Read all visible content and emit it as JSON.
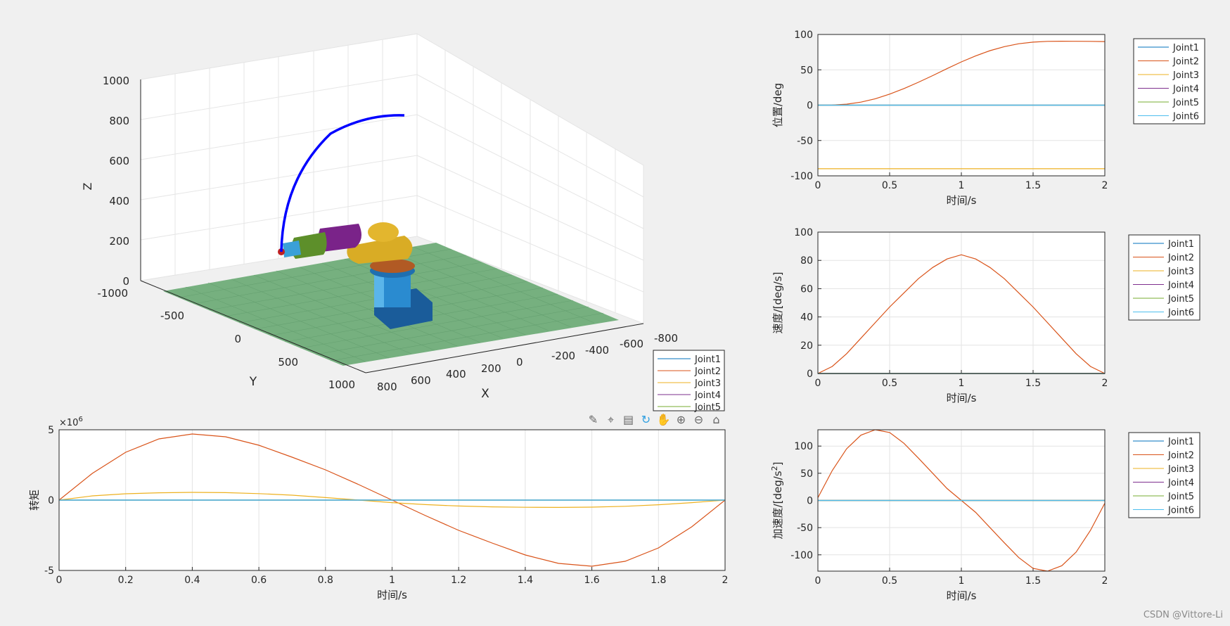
{
  "figure_3d": {
    "xlabel": "X",
    "ylabel": "Y",
    "zlabel": "Z",
    "x_ticks": [
      "800",
      "600",
      "400",
      "200",
      "0",
      "-200",
      "-400",
      "-600",
      "-800"
    ],
    "y_ticks": [
      "-1000",
      "-500",
      "0",
      "500",
      "1000"
    ],
    "z_ticks": [
      "0",
      "200",
      "400",
      "600",
      "800",
      "1000"
    ],
    "legend": [
      "Joint1",
      "Joint2",
      "Joint3",
      "Joint4",
      "Joint5"
    ],
    "trajectory_color": "#0000ff",
    "floor_color": "#6fae7c"
  },
  "toolbar": {
    "icons": [
      "brush-icon",
      "data-tips-icon",
      "legend-icon",
      "rotate-icon",
      "pan-icon",
      "zoom-in-icon",
      "zoom-out-icon",
      "home-icon"
    ],
    "glyphs": [
      "✎",
      "⌖",
      "▤",
      "↻",
      "✋",
      "⊕",
      "⊖",
      "⌂"
    ]
  },
  "series_colors": [
    "#0072bd",
    "#d95319",
    "#edb120",
    "#7e2f8e",
    "#77ac30",
    "#4dbeee"
  ],
  "watermark": "CSDN @Vittore-Li",
  "chart_data": [
    {
      "id": "position",
      "type": "line",
      "xlabel": "时间/s",
      "ylabel": "位置/deg",
      "xlim": [
        0,
        2
      ],
      "ylim": [
        -100,
        100
      ],
      "xticks": [
        0,
        0.5,
        1,
        1.5,
        2
      ],
      "yticks": [
        -100,
        -50,
        0,
        50,
        100
      ],
      "x_tick_labels": [
        "0",
        "0.5",
        "1",
        "1.5",
        "2"
      ],
      "y_tick_labels": [
        "-100",
        "-50",
        "0",
        "50",
        "100"
      ],
      "grid": true,
      "legend": "outside-right",
      "x": [
        0,
        0.1,
        0.2,
        0.3,
        0.4,
        0.5,
        0.6,
        0.7,
        0.8,
        0.9,
        1.0,
        1.1,
        1.2,
        1.3,
        1.4,
        1.5,
        1.6,
        1.7,
        1.8,
        1.9,
        2.0
      ],
      "series": [
        {
          "name": "Joint1",
          "values": [
            0,
            0,
            0,
            0,
            0,
            0,
            0,
            0,
            0,
            0,
            0,
            0,
            0,
            0,
            0,
            0,
            0,
            0,
            0,
            0,
            0
          ]
        },
        {
          "name": "Joint2",
          "values": [
            0,
            0.2,
            1.4,
            4.3,
            9.1,
            15.6,
            23.5,
            32.3,
            41.8,
            51.6,
            61.2,
            69.8,
            77.1,
            82.8,
            86.9,
            89.2,
            90.2,
            90.4,
            90.3,
            90.2,
            90
          ]
        },
        {
          "name": "Joint3",
          "values": [
            -90,
            -90,
            -90,
            -90,
            -90,
            -90,
            -90,
            -90,
            -90,
            -90,
            -90,
            -90,
            -90,
            -90,
            -90,
            -90,
            -90,
            -90,
            -90,
            -90,
            -90
          ]
        },
        {
          "name": "Joint4",
          "values": [
            0,
            0,
            0,
            0,
            0,
            0,
            0,
            0,
            0,
            0,
            0,
            0,
            0,
            0,
            0,
            0,
            0,
            0,
            0,
            0,
            0
          ]
        },
        {
          "name": "Joint5",
          "values": [
            0,
            0,
            0,
            0,
            0,
            0,
            0,
            0,
            0,
            0,
            0,
            0,
            0,
            0,
            0,
            0,
            0,
            0,
            0,
            0,
            0
          ]
        },
        {
          "name": "Joint6",
          "values": [
            0,
            0,
            0,
            0,
            0,
            0,
            0,
            0,
            0,
            0,
            0,
            0,
            0,
            0,
            0,
            0,
            0,
            0,
            0,
            0,
            0
          ]
        }
      ]
    },
    {
      "id": "velocity",
      "type": "line",
      "xlabel": "时间/s",
      "ylabel": "速度/[deg/s]",
      "xlim": [
        0,
        2
      ],
      "ylim": [
        0,
        100
      ],
      "xticks": [
        0,
        0.5,
        1,
        1.5,
        2
      ],
      "yticks": [
        0,
        20,
        40,
        60,
        80,
        100
      ],
      "x_tick_labels": [
        "0",
        "0.5",
        "1",
        "1.5",
        "2"
      ],
      "y_tick_labels": [
        "0",
        "20",
        "40",
        "60",
        "80",
        "100"
      ],
      "grid": true,
      "legend": "outside-right",
      "x": [
        0,
        0.1,
        0.2,
        0.3,
        0.4,
        0.5,
        0.6,
        0.7,
        0.8,
        0.9,
        1.0,
        1.1,
        1.2,
        1.3,
        1.4,
        1.5,
        1.6,
        1.7,
        1.8,
        1.9,
        2.0
      ],
      "series": [
        {
          "name": "Joint1",
          "values": [
            0,
            0,
            0,
            0,
            0,
            0,
            0,
            0,
            0,
            0,
            0,
            0,
            0,
            0,
            0,
            0,
            0,
            0,
            0,
            0,
            0
          ]
        },
        {
          "name": "Joint2",
          "values": [
            0,
            5,
            14,
            25,
            36,
            47,
            57,
            67,
            75,
            81,
            84,
            81,
            75,
            67,
            57,
            47,
            36,
            25,
            14,
            5,
            0
          ]
        },
        {
          "name": "Joint3",
          "values": [
            0,
            0,
            0,
            0,
            0,
            0,
            0,
            0,
            0,
            0,
            0,
            0,
            0,
            0,
            0,
            0,
            0,
            0,
            0,
            0,
            0
          ]
        },
        {
          "name": "Joint4",
          "values": [
            0,
            0,
            0,
            0,
            0,
            0,
            0,
            0,
            0,
            0,
            0,
            0,
            0,
            0,
            0,
            0,
            0,
            0,
            0,
            0,
            0
          ]
        },
        {
          "name": "Joint5",
          "values": [
            0,
            0,
            0,
            0,
            0,
            0,
            0,
            0,
            0,
            0,
            0,
            0,
            0,
            0,
            0,
            0,
            0,
            0,
            0,
            0,
            0
          ]
        },
        {
          "name": "Joint6",
          "values": [
            0,
            0,
            0,
            0,
            0,
            0,
            0,
            0,
            0,
            0,
            0,
            0,
            0,
            0,
            0,
            0,
            0,
            0,
            0,
            0,
            0
          ]
        }
      ]
    },
    {
      "id": "acceleration",
      "type": "line",
      "xlabel": "时间/s",
      "ylabel": "加速度/[deg/s",
      "ylabel_sup": "2",
      "ylabel_end": "]",
      "xlim": [
        0,
        2
      ],
      "ylim": [
        -130,
        130
      ],
      "xticks": [
        0,
        0.5,
        1,
        1.5,
        2
      ],
      "yticks": [
        -100,
        -50,
        0,
        50,
        100
      ],
      "x_tick_labels": [
        "0",
        "0.5",
        "1",
        "1.5",
        "2"
      ],
      "y_tick_labels": [
        "-100",
        "-50",
        "0",
        "50",
        "100"
      ],
      "grid": true,
      "legend": "outside-right",
      "x": [
        0,
        0.1,
        0.2,
        0.3,
        0.4,
        0.5,
        0.6,
        0.7,
        0.8,
        0.9,
        1.0,
        1.1,
        1.2,
        1.3,
        1.4,
        1.5,
        1.6,
        1.7,
        1.8,
        1.9,
        2.0
      ],
      "series": [
        {
          "name": "Joint1",
          "values": [
            0,
            0,
            0,
            0,
            0,
            0,
            0,
            0,
            0,
            0,
            0,
            0,
            0,
            0,
            0,
            0,
            0,
            0,
            0,
            0,
            0
          ]
        },
        {
          "name": "Joint2",
          "values": [
            5,
            55,
            95,
            120,
            130,
            125,
            105,
            78,
            50,
            22,
            0,
            -22,
            -50,
            -78,
            -105,
            -125,
            -130,
            -120,
            -95,
            -55,
            -5
          ]
        },
        {
          "name": "Joint3",
          "values": [
            0,
            0,
            0,
            0,
            0,
            0,
            0,
            0,
            0,
            0,
            0,
            0,
            0,
            0,
            0,
            0,
            0,
            0,
            0,
            0,
            0
          ]
        },
        {
          "name": "Joint4",
          "values": [
            0,
            0,
            0,
            0,
            0,
            0,
            0,
            0,
            0,
            0,
            0,
            0,
            0,
            0,
            0,
            0,
            0,
            0,
            0,
            0,
            0
          ]
        },
        {
          "name": "Joint5",
          "values": [
            0,
            0,
            0,
            0,
            0,
            0,
            0,
            0,
            0,
            0,
            0,
            0,
            0,
            0,
            0,
            0,
            0,
            0,
            0,
            0,
            0
          ]
        },
        {
          "name": "Joint6",
          "values": [
            0,
            0,
            0,
            0,
            0,
            0,
            0,
            0,
            0,
            0,
            0,
            0,
            0,
            0,
            0,
            0,
            0,
            0,
            0,
            0,
            0
          ]
        }
      ]
    },
    {
      "id": "torque",
      "type": "line",
      "xlabel": "时间/s",
      "ylabel": "转矩",
      "exponent": "6",
      "exponent_base": "×10",
      "xlim": [
        0,
        2
      ],
      "ylim": [
        -5,
        5
      ],
      "xticks": [
        0,
        0.2,
        0.4,
        0.6,
        0.8,
        1,
        1.2,
        1.4,
        1.6,
        1.8,
        2
      ],
      "yticks": [
        -5,
        0,
        5
      ],
      "x_tick_labels": [
        "0",
        "0.2",
        "0.4",
        "0.6",
        "0.8",
        "1",
        "1.2",
        "1.4",
        "1.6",
        "1.8",
        "2"
      ],
      "y_tick_labels": [
        "-5",
        "0",
        "5"
      ],
      "grid": true,
      "x": [
        0,
        0.1,
        0.2,
        0.3,
        0.4,
        0.5,
        0.6,
        0.7,
        0.8,
        0.9,
        1.0,
        1.1,
        1.2,
        1.3,
        1.4,
        1.5,
        1.6,
        1.7,
        1.8,
        1.9,
        2.0
      ],
      "series": [
        {
          "name": "Joint1",
          "values": [
            0,
            0,
            0,
            0,
            0,
            0,
            0,
            0,
            0,
            0,
            0,
            0,
            0,
            0,
            0,
            0,
            0,
            0,
            0,
            0,
            0
          ]
        },
        {
          "name": "Joint2",
          "values": [
            0,
            1.9,
            3.4,
            4.35,
            4.7,
            4.5,
            3.9,
            3.05,
            2.15,
            1.1,
            0,
            -1.1,
            -2.15,
            -3.05,
            -3.9,
            -4.5,
            -4.7,
            -4.35,
            -3.4,
            -1.9,
            0
          ]
        },
        {
          "name": "Joint3",
          "values": [
            0,
            0.3,
            0.45,
            0.52,
            0.55,
            0.53,
            0.46,
            0.35,
            0.18,
            0,
            -0.18,
            -0.32,
            -0.42,
            -0.48,
            -0.51,
            -0.52,
            -0.5,
            -0.44,
            -0.33,
            -0.18,
            0
          ]
        },
        {
          "name": "Joint4",
          "values": [
            0,
            0,
            0,
            0,
            0,
            0,
            0,
            0,
            0,
            0,
            0,
            0,
            0,
            0,
            0,
            0,
            0,
            0,
            0,
            0,
            0
          ]
        },
        {
          "name": "Joint5",
          "values": [
            0,
            0,
            0,
            0,
            0,
            0,
            0,
            0,
            0,
            0,
            0,
            0,
            0,
            0,
            0,
            0,
            0,
            0,
            0,
            0,
            0
          ]
        },
        {
          "name": "Joint6",
          "values": [
            0,
            0,
            0,
            0,
            0,
            0,
            0,
            0,
            0,
            0,
            0,
            0,
            0,
            0,
            0,
            0,
            0,
            0,
            0,
            0,
            0
          ]
        }
      ]
    }
  ]
}
